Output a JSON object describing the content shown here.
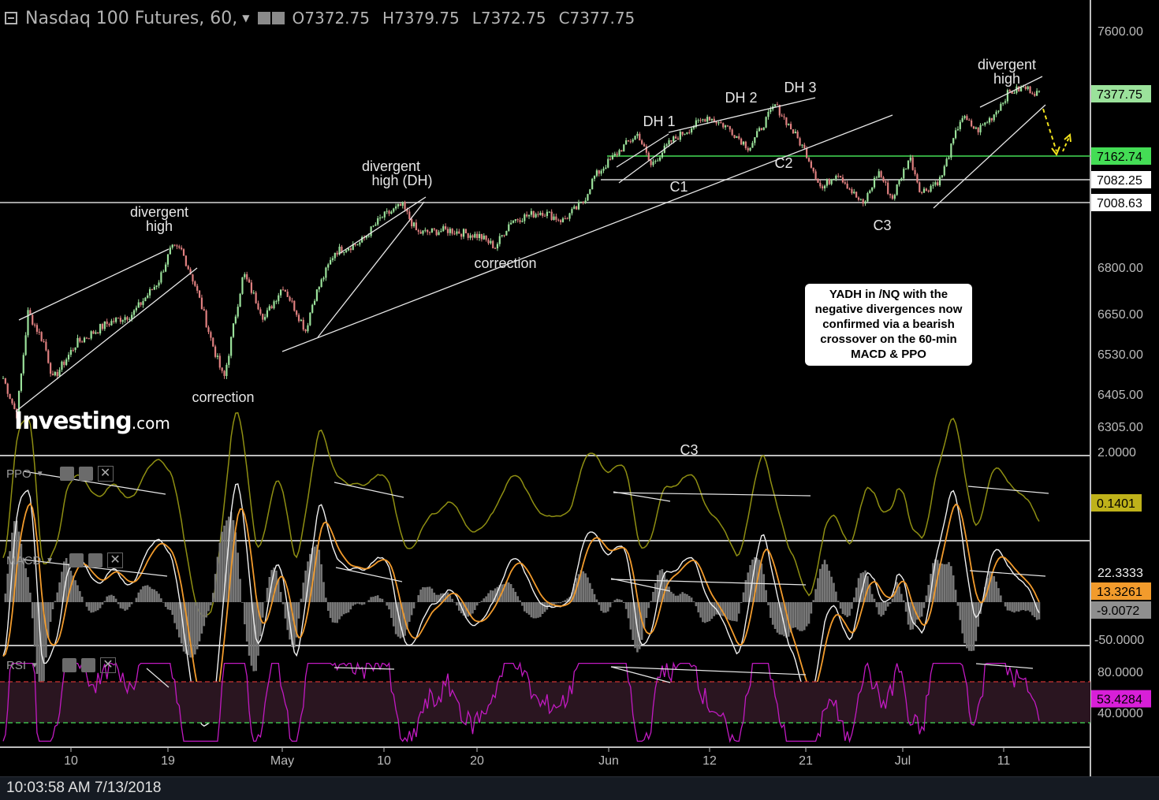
{
  "header": {
    "symbol": "Nasdaq 100 Futures, 60,",
    "open": "O7372.75",
    "high": "H7379.75",
    "low": "L7372.75",
    "close": "C7377.75"
  },
  "footer": {
    "timestamp": "10:03:58 AM 7/13/2018"
  },
  "callout": "YADH in /NQ with the negative divergences now confirmed via a bearish crossover on the 60-min MACD & PPO",
  "logo": {
    "main": "Investing",
    "suffix": ".com"
  },
  "colors": {
    "background": "#000000",
    "candle_up": "#9be29b",
    "candle_down": "#e08080",
    "ppo_line": "#8f8f12",
    "macd_line": "#f0f0f0",
    "signal_line": "#f29b2c",
    "histogram": "#777777",
    "rsi_line": "#c21ac2",
    "level_green": "#44dd55",
    "rsi_band": "#cc3333"
  },
  "chart_data": [
    {
      "type": "candlestick",
      "title": "Nasdaq 100 Futures, 60,",
      "x_ticks": [
        "10",
        "19",
        "May",
        "10",
        "20",
        "Jun",
        "12",
        "21",
        "Jul",
        "11"
      ],
      "y_ticks": [
        "7600.00",
        "6800.00",
        "6650.00",
        "6530.00",
        "6405.00",
        "6305.00"
      ],
      "ylim": [
        6260,
        7640
      ],
      "price_labels": [
        {
          "value": 7377.75,
          "label": "7377.75",
          "color": "#9be29b"
        },
        {
          "value": 7162.74,
          "label": "7162.74",
          "color": "#44dd55"
        },
        {
          "value": 7082.25,
          "label": "7082.25",
          "color": "#ffffff"
        },
        {
          "value": 7008.63,
          "label": "7008.63",
          "color": "#ffffff"
        }
      ],
      "horizontal_levels": [
        7162.74,
        7082.25,
        7008.63
      ],
      "price_path": [
        {
          "x": 0,
          "y": 6455
        },
        {
          "x": 0.013,
          "y": 6340
        },
        {
          "x": 0.024,
          "y": 6655
        },
        {
          "x": 0.04,
          "y": 6560
        },
        {
          "x": 0.048,
          "y": 6450
        },
        {
          "x": 0.07,
          "y": 6560
        },
        {
          "x": 0.1,
          "y": 6620
        },
        {
          "x": 0.125,
          "y": 6650
        },
        {
          "x": 0.15,
          "y": 6755
        },
        {
          "x": 0.162,
          "y": 6860
        },
        {
          "x": 0.172,
          "y": 6855
        },
        {
          "x": 0.185,
          "y": 6745
        },
        {
          "x": 0.2,
          "y": 6580
        },
        {
          "x": 0.213,
          "y": 6450
        },
        {
          "x": 0.232,
          "y": 6780
        },
        {
          "x": 0.252,
          "y": 6635
        },
        {
          "x": 0.27,
          "y": 6740
        },
        {
          "x": 0.292,
          "y": 6600
        },
        {
          "x": 0.3,
          "y": 6700
        },
        {
          "x": 0.32,
          "y": 6850
        },
        {
          "x": 0.345,
          "y": 6880
        },
        {
          "x": 0.365,
          "y": 6960
        },
        {
          "x": 0.385,
          "y": 7000
        },
        {
          "x": 0.4,
          "y": 6910
        },
        {
          "x": 0.43,
          "y": 6920
        },
        {
          "x": 0.46,
          "y": 6900
        },
        {
          "x": 0.475,
          "y": 6865
        },
        {
          "x": 0.49,
          "y": 6950
        },
        {
          "x": 0.52,
          "y": 6980
        },
        {
          "x": 0.54,
          "y": 6950
        },
        {
          "x": 0.56,
          "y": 7010
        },
        {
          "x": 0.57,
          "y": 7090
        },
        {
          "x": 0.6,
          "y": 7200
        },
        {
          "x": 0.613,
          "y": 7240
        },
        {
          "x": 0.625,
          "y": 7130
        },
        {
          "x": 0.645,
          "y": 7215
        },
        {
          "x": 0.68,
          "y": 7300
        },
        {
          "x": 0.7,
          "y": 7260
        },
        {
          "x": 0.72,
          "y": 7190
        },
        {
          "x": 0.745,
          "y": 7340
        },
        {
          "x": 0.762,
          "y": 7250
        },
        {
          "x": 0.775,
          "y": 7175
        },
        {
          "x": 0.79,
          "y": 7050
        },
        {
          "x": 0.805,
          "y": 7110
        },
        {
          "x": 0.82,
          "y": 7040
        },
        {
          "x": 0.83,
          "y": 7000
        },
        {
          "x": 0.845,
          "y": 7110
        },
        {
          "x": 0.858,
          "y": 7020
        },
        {
          "x": 0.875,
          "y": 7160
        },
        {
          "x": 0.886,
          "y": 7040
        },
        {
          "x": 0.905,
          "y": 7085
        },
        {
          "x": 0.925,
          "y": 7300
        },
        {
          "x": 0.94,
          "y": 7250
        },
        {
          "x": 0.955,
          "y": 7300
        },
        {
          "x": 0.97,
          "y": 7380
        },
        {
          "x": 0.985,
          "y": 7400
        },
        {
          "x": 1.0,
          "y": 7378
        }
      ],
      "annotations": [
        "divergent high",
        "correction",
        "divergent high (DH)",
        "correction",
        "DH 1",
        "C1",
        "DH 2",
        "C2",
        "DH 3",
        "C3",
        "divergent high",
        "C3"
      ]
    },
    {
      "type": "line",
      "title": "PPO",
      "y_ticks": [
        "2.0000"
      ],
      "ylim": [
        -1.3,
        2.4
      ],
      "last_value": "0.1401",
      "series": [
        {
          "name": "PPO",
          "last": 0.1401
        }
      ]
    },
    {
      "type": "line",
      "title": "MACD",
      "y_ticks": [
        "-50.0000"
      ],
      "ylim": [
        -55,
        75
      ],
      "values": [
        "22.3333",
        "13.3261",
        "-9.0072"
      ],
      "series": [
        {
          "name": "MACD",
          "last": 22.3333
        },
        {
          "name": "Signal",
          "last": 13.3261
        },
        {
          "name": "Histogram",
          "last": -9.0072
        }
      ]
    },
    {
      "type": "line",
      "title": "RSI",
      "y_ticks": [
        "80.0000",
        "40.0000"
      ],
      "ylim": [
        5,
        105
      ],
      "levels": [
        70,
        30
      ],
      "last_value": "53.4284",
      "series": [
        {
          "name": "RSI",
          "last": 53.4284
        }
      ]
    }
  ]
}
